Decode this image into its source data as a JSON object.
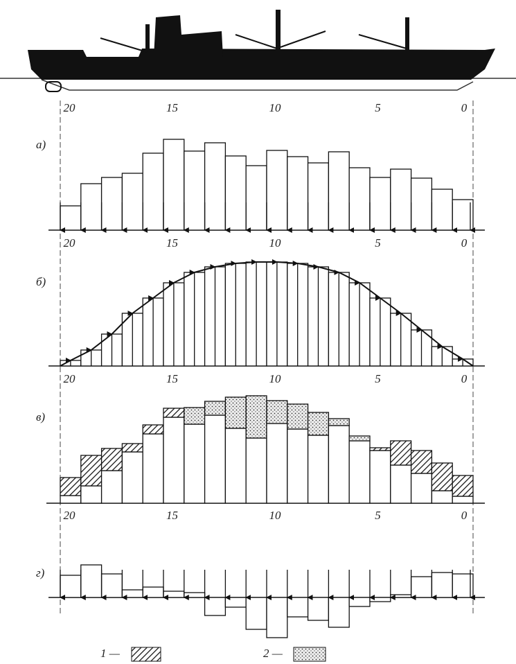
{
  "panels": [
    {
      "label": "а)",
      "scale": [
        20,
        15,
        10,
        5,
        0
      ],
      "values": [
        35,
        67,
        76,
        82,
        111,
        131,
        114,
        126,
        107,
        93,
        115,
        106,
        97,
        113,
        90,
        76,
        88,
        75,
        59,
        44
      ]
    },
    {
      "label": "б)",
      "scale": [
        20,
        15,
        10,
        5,
        0
      ],
      "values": [
        8,
        23,
        46,
        76,
        98,
        120,
        135,
        143,
        148,
        150,
        150,
        148,
        143,
        135,
        120,
        98,
        76,
        52,
        28,
        10
      ]
    },
    {
      "label": "в)",
      "scale": [
        20,
        15,
        10,
        5,
        0
      ],
      "values": [
        11,
        25,
        47,
        74,
        100,
        124,
        114,
        127,
        108,
        94,
        115,
        107,
        98,
        112,
        90,
        76,
        55,
        43,
        18,
        10
      ],
      "excess_1": [
        26,
        44,
        32,
        12,
        13,
        13,
        null,
        null,
        null,
        null,
        null,
        null,
        null,
        null,
        null,
        4,
        35,
        33,
        40,
        30
      ],
      "excess_2": [
        null,
        null,
        null,
        null,
        null,
        null,
        24,
        20,
        45,
        61,
        33,
        36,
        33,
        10,
        7,
        null,
        null,
        null,
        null,
        null
      ]
    },
    {
      "label": "г)",
      "scale": [
        20,
        15,
        10,
        5,
        0
      ],
      "values": [
        32,
        47,
        34,
        11,
        15,
        9,
        7,
        -26,
        -14,
        -46,
        -58,
        -28,
        -33,
        -43,
        -13,
        -6,
        4,
        30,
        36,
        34
      ]
    }
  ],
  "legend": [
    "1 —",
    "2 —"
  ]
}
